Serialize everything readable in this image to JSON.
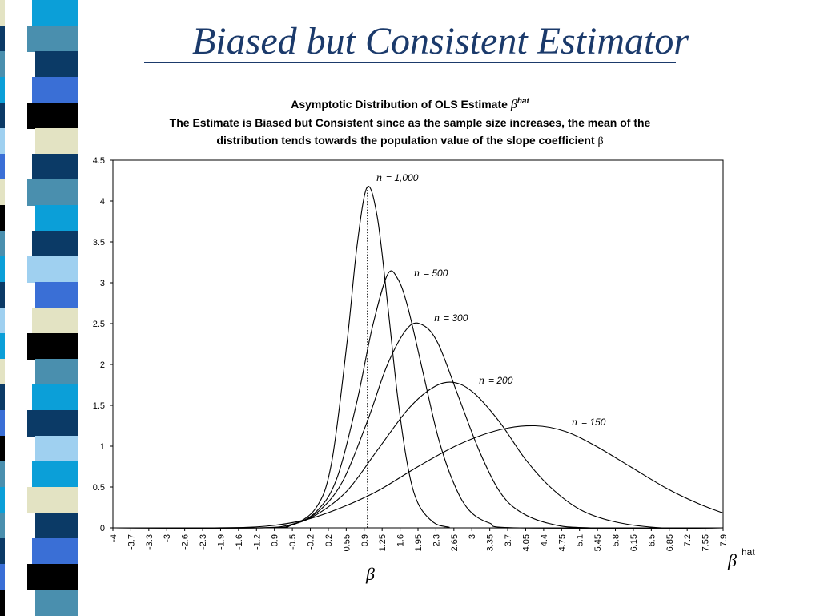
{
  "slide": {
    "title": "Biased but Consistent Estimator"
  },
  "strip_colors": [
    "#0b9fd8",
    "#4a8fae",
    "#0b3a66",
    "#3a6fd6",
    "#000000",
    "#e3e3c3",
    "#0b3a66",
    "#4a8fae",
    "#0b9fd8",
    "#0b3a66",
    "#9fd0f0",
    "#3a6fd6",
    "#e3e3c3",
    "#000000",
    "#4a8fae",
    "#0b9fd8",
    "#0b3a66",
    "#9fd0f0",
    "#0b9fd8",
    "#e3e3c3",
    "#0b3a66",
    "#3a6fd6",
    "#000000",
    "#4a8fae"
  ],
  "chart_data": {
    "type": "line",
    "title_line1": "Asymptotic Distribution of OLS Estimate",
    "title_symbol": "β",
    "title_symbol_sup": "hat",
    "title_line2": "The Estimate is Biased but Consistent since as the sample size increases, the mean of the",
    "title_line3_text": "distribution tends towards the population value of the slope coefficient",
    "title_line3_symbol": "β",
    "x_tick_labels": [
      "-4",
      "-3.7",
      "-3.3",
      "-3",
      "-2.6",
      "-2.3",
      "-1.9",
      "-1.6",
      "-1.2",
      "-0.9",
      "-0.5",
      "-0.2",
      "0.2",
      "0.55",
      "0.9",
      "1.25",
      "1.6",
      "1.95",
      "2.3",
      "2.65",
      "3",
      "3.35",
      "3.7",
      "4.05",
      "4.4",
      "4.75",
      "5.1",
      "5.45",
      "5.8",
      "6.15",
      "6.5",
      "6.85",
      "7.2",
      "7.55",
      "7.9"
    ],
    "xlim": [
      -4,
      8
    ],
    "ylim": [
      0,
      4.5
    ],
    "y_ticks": [
      0,
      0.5,
      1,
      1.5,
      2,
      2.5,
      3,
      3.5,
      4,
      4.5
    ],
    "x_axis_symbol": "β",
    "x_axis_symbol_sup": "hat",
    "reference_line": {
      "x": 1.0,
      "symbol": "β"
    },
    "series": [
      {
        "name": "n = 1,000",
        "label_n": "n",
        "label_rest": "= 1,000",
        "x": [
          -1.0,
          -0.5,
          0.0,
          0.3,
          0.6,
          0.8,
          1.0,
          1.2,
          1.4,
          1.6,
          1.8,
          2.0,
          2.3,
          2.6,
          3.0
        ],
        "y": [
          0.0,
          0.03,
          0.25,
          0.8,
          2.25,
          3.45,
          4.17,
          3.8,
          2.75,
          1.6,
          0.75,
          0.3,
          0.07,
          0.01,
          0.0
        ]
      },
      {
        "name": "n = 500",
        "label_n": "n",
        "label_rest": "= 500",
        "x": [
          -1.0,
          -0.5,
          0.0,
          0.4,
          0.8,
          1.1,
          1.4,
          1.6,
          1.8,
          2.1,
          2.4,
          2.7,
          3.0,
          3.4,
          4.0
        ],
        "y": [
          0.0,
          0.03,
          0.2,
          0.6,
          1.55,
          2.45,
          3.1,
          3.05,
          2.7,
          1.9,
          1.1,
          0.55,
          0.22,
          0.06,
          0.0
        ]
      },
      {
        "name": "n = 300",
        "label_n": "n",
        "label_rest": "= 300",
        "x": [
          -1.0,
          -0.5,
          0.0,
          0.5,
          1.0,
          1.4,
          1.8,
          2.1,
          2.4,
          2.8,
          3.2,
          3.6,
          4.0,
          4.6,
          5.4
        ],
        "y": [
          0.0,
          0.04,
          0.18,
          0.55,
          1.3,
          2.0,
          2.45,
          2.48,
          2.25,
          1.6,
          0.95,
          0.45,
          0.2,
          0.05,
          0.0
        ]
      },
      {
        "name": "n = 200",
        "label_n": "n",
        "label_rest": "= 200",
        "x": [
          -1.2,
          -0.5,
          0.0,
          0.6,
          1.2,
          1.8,
          2.3,
          2.7,
          3.1,
          3.6,
          4.1,
          4.6,
          5.2,
          5.9,
          6.8
        ],
        "y": [
          0.0,
          0.04,
          0.16,
          0.45,
          0.95,
          1.45,
          1.72,
          1.78,
          1.65,
          1.3,
          0.85,
          0.5,
          0.22,
          0.07,
          0.0
        ]
      },
      {
        "name": "n = 150",
        "label_n": "n",
        "label_rest": "= 150",
        "x": [
          -2.0,
          -1.0,
          -0.2,
          0.5,
          1.2,
          2.0,
          2.8,
          3.6,
          4.3,
          4.9,
          5.5,
          6.2,
          6.9,
          7.5,
          8.0
        ],
        "y": [
          0.0,
          0.02,
          0.1,
          0.25,
          0.45,
          0.75,
          1.02,
          1.2,
          1.25,
          1.18,
          1.0,
          0.74,
          0.48,
          0.3,
          0.18
        ]
      }
    ]
  }
}
